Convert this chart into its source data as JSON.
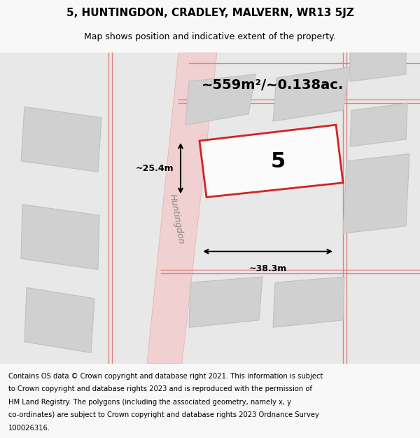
{
  "title_line1": "5, HUNTINGDON, CRADLEY, MALVERN, WR13 5JZ",
  "title_line2": "Map shows position and indicative extent of the property.",
  "area_text": "~559m²/~0.138ac.",
  "plot_number": "5",
  "dim_width": "~38.3m",
  "dim_height": "~25.4m",
  "footer_text": "Contains OS data © Crown copyright and database right 2021. This information is subject to Crown copyright and database rights 2023 and is reproduced with the permission of HM Land Registry. The polygons (including the associated geometry, namely x, y co-ordinates) are subject to Crown copyright and database rights 2023 Ordnance Survey 100026316.",
  "bg_color": "#f0f0f0",
  "map_bg": "#e8e8e8",
  "road_color": "#f5c0c0",
  "building_color": "#d0d0d0",
  "plot_outline_color": "#cc0000",
  "plot_fill_color": "#ffffff",
  "street_label": "Huntingdon",
  "fig_width": 6.0,
  "fig_height": 6.25,
  "dpi": 100
}
